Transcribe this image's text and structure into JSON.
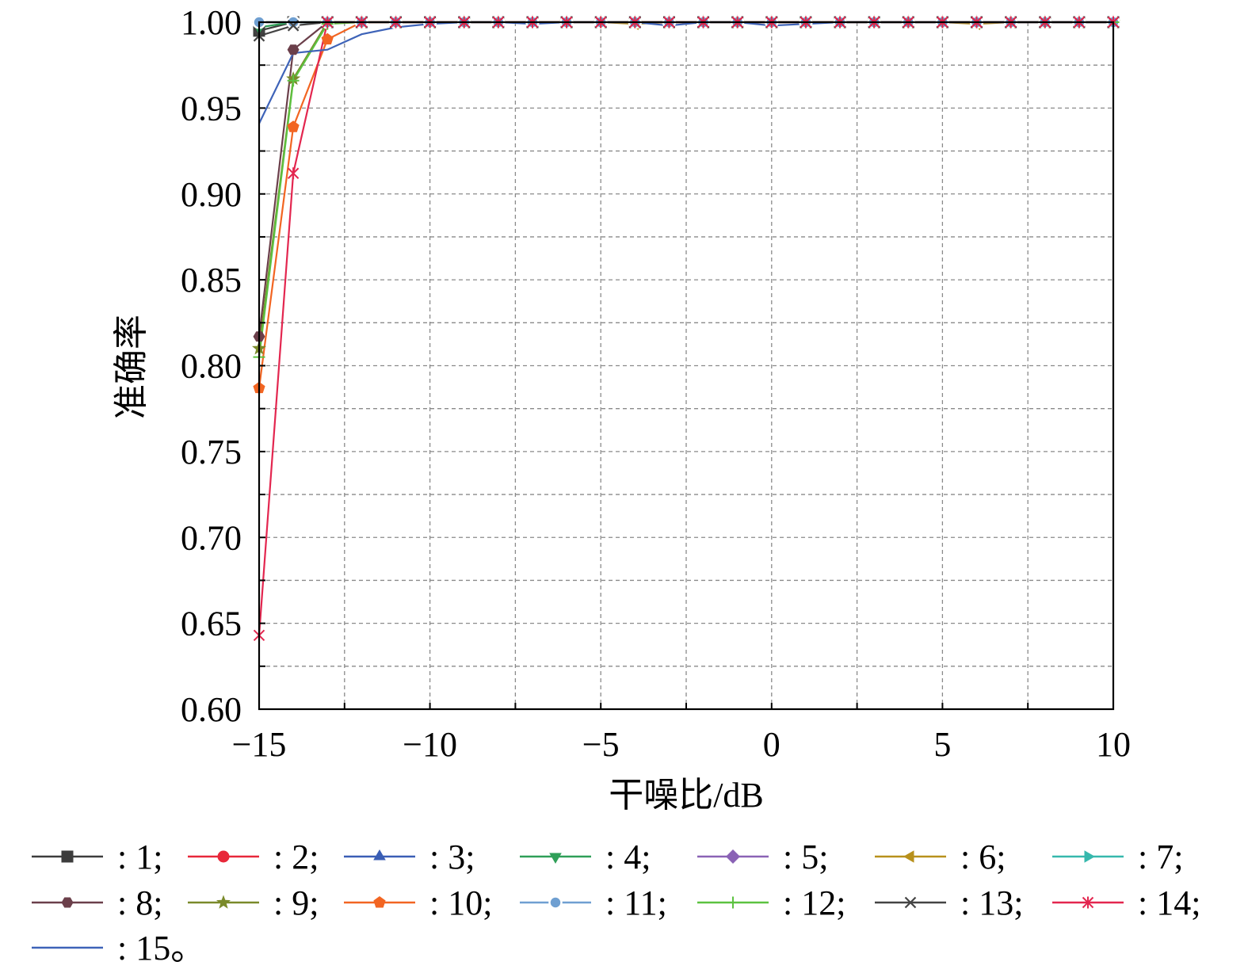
{
  "chart_data": {
    "type": "line",
    "xlabel": "干噪比/dB",
    "ylabel": "准确率",
    "xlim": [
      -15,
      10
    ],
    "ylim": [
      0.6,
      1.0
    ],
    "x_ticks": [
      -15,
      -10,
      -5,
      0,
      5,
      10
    ],
    "x_tick_labels": [
      "−15",
      "−10",
      "−5",
      "0",
      "5",
      "10"
    ],
    "y_ticks": [
      0.6,
      0.65,
      0.7,
      0.75,
      0.8,
      0.85,
      0.9,
      0.95,
      1.0
    ],
    "y_tick_labels": [
      "0.60",
      "0.65",
      "0.70",
      "0.75",
      "0.80",
      "0.85",
      "0.90",
      "0.95",
      "1.00"
    ],
    "grid": true,
    "x": [
      -15,
      -14,
      -13,
      -12,
      -11,
      -10,
      -9,
      -8,
      -7,
      -6,
      -5,
      -4,
      -3,
      -2,
      -1,
      0,
      1,
      2,
      3,
      4,
      5,
      6,
      7,
      8,
      9,
      10
    ],
    "series": [
      {
        "name": ": 1;",
        "color": "#3d3d3d",
        "marker": "square",
        "values": [
          0.995,
          1.0,
          1.0,
          1.0,
          1.0,
          1.0,
          1.0,
          1.0,
          1.0,
          1.0,
          1.0,
          1.0,
          1.0,
          1.0,
          1.0,
          1.0,
          1.0,
          1.0,
          1.0,
          1.0,
          1.0,
          1.0,
          1.0,
          1.0,
          1.0,
          1.0
        ]
      },
      {
        "name": ": 2;",
        "color": "#e8283a",
        "marker": "circle",
        "values": [
          1.0,
          1.0,
          1.0,
          1.0,
          1.0,
          1.0,
          1.0,
          1.0,
          1.0,
          1.0,
          1.0,
          1.0,
          1.0,
          1.0,
          1.0,
          1.0,
          1.0,
          1.0,
          1.0,
          1.0,
          1.0,
          1.0,
          1.0,
          1.0,
          1.0,
          1.0
        ]
      },
      {
        "name": ": 3;",
        "color": "#3a5eb5",
        "marker": "triangle-up",
        "values": [
          1.0,
          1.0,
          1.0,
          1.0,
          1.0,
          1.0,
          1.0,
          1.0,
          1.0,
          1.0,
          1.0,
          1.0,
          1.0,
          1.0,
          1.0,
          1.0,
          1.0,
          1.0,
          1.0,
          1.0,
          1.0,
          1.0,
          1.0,
          1.0,
          1.0,
          1.0
        ]
      },
      {
        "name": ": 4;",
        "color": "#2f9f58",
        "marker": "triangle-down",
        "values": [
          0.997,
          1.0,
          1.0,
          1.0,
          1.0,
          1.0,
          1.0,
          1.0,
          1.0,
          1.0,
          1.0,
          1.0,
          1.0,
          1.0,
          1.0,
          1.0,
          1.0,
          1.0,
          1.0,
          1.0,
          1.0,
          1.0,
          1.0,
          1.0,
          1.0,
          1.0
        ]
      },
      {
        "name": ": 5;",
        "color": "#8a62b5",
        "marker": "diamond",
        "values": [
          1.0,
          1.0,
          1.0,
          1.0,
          1.0,
          1.0,
          1.0,
          1.0,
          1.0,
          1.0,
          1.0,
          1.0,
          1.0,
          1.0,
          1.0,
          1.0,
          1.0,
          1.0,
          1.0,
          1.0,
          1.0,
          1.0,
          1.0,
          1.0,
          1.0,
          1.0
        ]
      },
      {
        "name": ": 6;",
        "color": "#b8911c",
        "marker": "triangle-left",
        "values": [
          1.0,
          1.0,
          1.0,
          1.0,
          1.0,
          1.0,
          1.0,
          1.0,
          1.0,
          1.0,
          1.0,
          0.999,
          1.0,
          1.0,
          1.0,
          1.0,
          1.0,
          1.0,
          1.0,
          1.0,
          1.0,
          0.999,
          1.0,
          1.0,
          1.0,
          1.0
        ]
      },
      {
        "name": ": 7;",
        "color": "#36b8ad",
        "marker": "triangle-right",
        "values": [
          1.0,
          1.0,
          1.0,
          1.0,
          1.0,
          1.0,
          1.0,
          1.0,
          1.0,
          1.0,
          1.0,
          1.0,
          1.0,
          1.0,
          1.0,
          1.0,
          1.0,
          1.0,
          1.0,
          1.0,
          1.0,
          1.0,
          1.0,
          1.0,
          1.0,
          1.0
        ]
      },
      {
        "name": ": 8;",
        "color": "#6b3f4a",
        "marker": "hexagon",
        "values": [
          0.817,
          0.984,
          1.0,
          1.0,
          1.0,
          1.0,
          1.0,
          1.0,
          1.0,
          1.0,
          1.0,
          1.0,
          1.0,
          1.0,
          1.0,
          1.0,
          1.0,
          1.0,
          1.0,
          1.0,
          1.0,
          1.0,
          1.0,
          1.0,
          1.0,
          1.0
        ]
      },
      {
        "name": ": 9;",
        "color": "#7a8a2a",
        "marker": "star",
        "values": [
          0.81,
          0.967,
          1.0,
          1.0,
          1.0,
          1.0,
          1.0,
          1.0,
          1.0,
          1.0,
          1.0,
          1.0,
          1.0,
          1.0,
          1.0,
          1.0,
          1.0,
          1.0,
          1.0,
          1.0,
          1.0,
          1.0,
          1.0,
          1.0,
          1.0,
          1.0
        ]
      },
      {
        "name": ": 10;",
        "color": "#f26522",
        "marker": "pentagon",
        "values": [
          0.787,
          0.939,
          0.99,
          1.0,
          1.0,
          1.0,
          1.0,
          1.0,
          1.0,
          1.0,
          1.0,
          1.0,
          1.0,
          1.0,
          1.0,
          1.0,
          1.0,
          1.0,
          1.0,
          1.0,
          1.0,
          1.0,
          1.0,
          1.0,
          1.0,
          1.0
        ]
      },
      {
        "name": ": 11;",
        "color": "#6f9fd1",
        "marker": "circle-ring",
        "values": [
          1.0,
          1.0,
          1.0,
          1.0,
          1.0,
          1.0,
          1.0,
          1.0,
          1.0,
          1.0,
          1.0,
          1.0,
          1.0,
          1.0,
          1.0,
          1.0,
          1.0,
          1.0,
          1.0,
          1.0,
          1.0,
          1.0,
          1.0,
          1.0,
          1.0,
          1.0
        ]
      },
      {
        "name": ": 12;",
        "color": "#5cc240",
        "marker": "plus",
        "values": [
          0.805,
          0.966,
          0.999,
          1.0,
          1.0,
          1.0,
          1.0,
          1.0,
          1.0,
          1.0,
          1.0,
          1.0,
          1.0,
          1.0,
          1.0,
          1.0,
          1.0,
          1.0,
          1.0,
          1.0,
          1.0,
          1.0,
          1.0,
          1.0,
          1.0,
          1.0
        ]
      },
      {
        "name": ": 13;",
        "color": "#444444",
        "marker": "x",
        "values": [
          0.992,
          0.998,
          1.0,
          1.0,
          1.0,
          1.0,
          1.0,
          1.0,
          1.0,
          1.0,
          1.0,
          1.0,
          1.0,
          1.0,
          1.0,
          1.0,
          1.0,
          1.0,
          1.0,
          1.0,
          1.0,
          1.0,
          1.0,
          1.0,
          1.0,
          1.0
        ]
      },
      {
        "name": ": 14;",
        "color": "#e3264f",
        "marker": "asterisk",
        "values": [
          0.643,
          0.912,
          1.0,
          1.0,
          1.0,
          1.0,
          1.0,
          1.0,
          1.0,
          1.0,
          1.0,
          1.0,
          1.0,
          1.0,
          1.0,
          1.0,
          1.0,
          1.0,
          1.0,
          1.0,
          1.0,
          1.0,
          1.0,
          1.0,
          1.0,
          1.0
        ]
      },
      {
        "name": ": 15。",
        "color": "#3e63b8",
        "marker": "none",
        "values": [
          0.941,
          0.982,
          0.984,
          0.993,
          0.997,
          0.999,
          1.0,
          1.0,
          0.999,
          1.0,
          1.0,
          1.0,
          0.998,
          1.0,
          1.0,
          0.998,
          0.999,
          1.0,
          1.0,
          1.0,
          1.0,
          1.0,
          1.0,
          1.0,
          1.0,
          1.0
        ]
      }
    ]
  }
}
